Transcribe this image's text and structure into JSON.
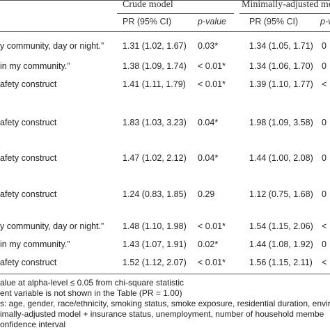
{
  "header": {
    "group1": "Crude model",
    "group2": "Minimally-adjusted me",
    "col_pr": "PR (95% CI)",
    "col_p": "p-value",
    "col_pr2": "PR (95% CI)",
    "col_p2": "p-va"
  },
  "rows": [
    {
      "label": "y community, day or night.”",
      "pr1": "1.31 (1.02, 1.67)",
      "p1": "0.03*",
      "pr2": "1.34 (1.05, 1.71)",
      "p2": "0"
    },
    {
      "label": " in my community.”",
      "pr1": "1.38 (1.09, 1.74)",
      "p1": "< 0.01*",
      "pr2": "1.34 (1.06, 1.70)",
      "p2": "0"
    },
    {
      "label": "afety construct",
      "pr1": "1.41 (1.11, 1.79)",
      "p1": "< 0.01*",
      "pr2": "1.39 (1.10, 1.77)",
      "p2": "<"
    },
    {
      "label": "afety construct",
      "pr1": "1.83 (1.03, 3.23)",
      "p1": "0.04*",
      "pr2": "1.98 (1.09, 3.58)",
      "p2": "0"
    },
    {
      "label": "afety construct",
      "pr1": "1.47 (1.02, 2.12)",
      "p1": "0.04*",
      "pr2": "1.44 (1.00, 2.08)",
      "p2": "0"
    },
    {
      "label": "afety construct",
      "pr1": "1.24 (0.83, 1.85)",
      "p1": "0.29",
      "pr2": "1.12 (0.75, 1.68)",
      "p2": "0"
    },
    {
      "label": "y community, day or night.”",
      "pr1": "1.48 (1.10, 1.98)",
      "p1": "< 0.01*",
      "pr2": "1.54 (1.15, 2.06)",
      "p2": "<"
    },
    {
      "label": " in my community.”",
      "pr1": "1.43 (1.07, 1.91)",
      "p1": "0.02*",
      "pr2": "1.44 (1.08, 1.92)",
      "p2": "0"
    },
    {
      "label": "afety construct",
      "pr1": "1.52 (1.12, 2.07)",
      "p1": "< 0.01*",
      "pr2": "1.56 (1.15, 2.11)",
      "p2": "<"
    }
  ],
  "footnotes": [
    "alue at alpha-level ≤ 0.05 from chi-square statistic",
    "ent variable is not shown in the Table (PR = 1.00)",
    "s: age, gender, race/ethnicity, smoking status, smoke exposure, residential duration, envir",
    "imally-adjusted model + insurance status, unemployment, number of household membe",
    "onfidence interval"
  ]
}
